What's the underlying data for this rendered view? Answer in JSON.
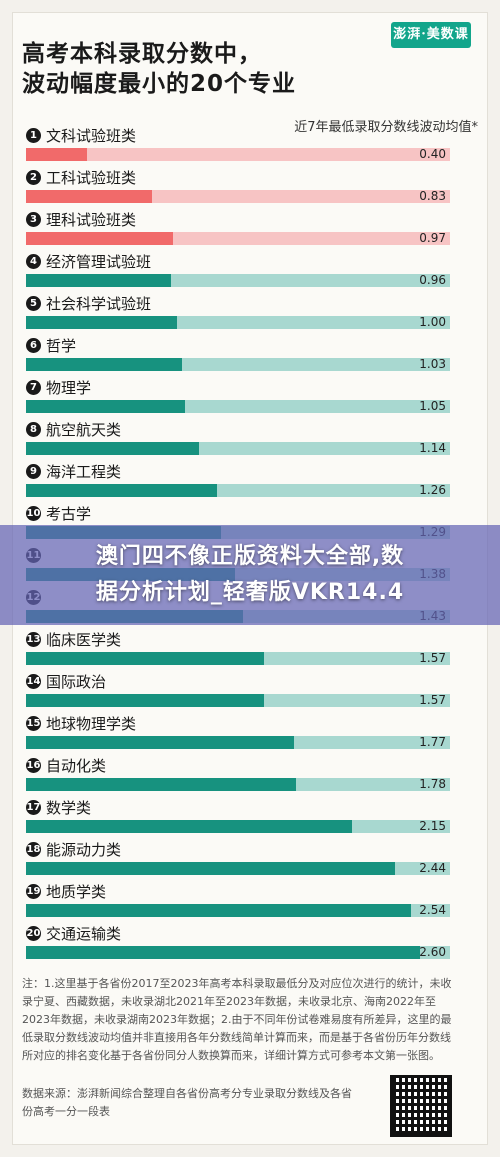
{
  "header": {
    "title_line1": "高考本科录取分数中，",
    "title_line2": "波动幅度最小的20个专业",
    "logo_text": "澎湃·美数课",
    "note": "近7年最低录取分数线波动均值*"
  },
  "colors": {
    "red_fill": "#f16a6a",
    "red_track": "#f7c4c4",
    "green_fill": "#17927f",
    "green_track": "#a8d8d0"
  },
  "chart_data": {
    "type": "bar",
    "title": "高考本科录取分数中，波动幅度最小的20个专业",
    "categories": [
      "文科试验班类",
      "工科试验班类",
      "理科试验班类",
      "经济管理试验班",
      "社会科学试验班",
      "哲学",
      "物理学",
      "航空航天类",
      "海洋工程类",
      "考古学",
      "",
      "",
      "临床医学类",
      "国际政治",
      "地球物理学类",
      "自动化类",
      "数学类",
      "能源动力类",
      "地质学类",
      "交通运输类"
    ],
    "values": [
      0.4,
      0.83,
      0.97,
      0.96,
      1.0,
      1.03,
      1.05,
      1.14,
      1.26,
      1.29,
      1.38,
      1.43,
      1.57,
      1.57,
      1.77,
      1.78,
      2.15,
      2.44,
      2.54,
      2.6
    ],
    "value_labels": [
      "0.40",
      "0.83",
      "0.97",
      "0.96",
      "1.00",
      "1.03",
      "1.05",
      "1.14",
      "1.26",
      "1.29",
      "1.38",
      "1.43",
      "1.57",
      "1.57",
      "1.77",
      "1.78",
      "2.15",
      "2.44",
      "2.54",
      "2.60"
    ],
    "highlight_count": 3,
    "xlim": [
      0,
      2.8
    ]
  },
  "overlay": {
    "line1": "澳门四不像正版资料大全部,数",
    "line2": "据分析计划_轻奢版VKR14.4"
  },
  "footer": {
    "note": "注：1.这里基于各省份2017至2023年高考本科录取最低分及对应位次进行的统计，未收录宁夏、西藏数据，未收录湖北2021年至2023年数据，未收录北京、海南2022年至2023年数据，未收录湖南2023年数据；2.由于不同年份试卷难易度有所差异，这里的最低录取分数线波动均值并非直接用各年分数线简单计算而来，而是基于各省份历年分数线所对应的排名变化基于各省份同分人数换算而来，详细计算方式可参考本文第一张图。",
    "source": "数据来源：澎湃新闻综合整理自各省份高考分专业录取分数线及各省份高考一分一段表"
  }
}
